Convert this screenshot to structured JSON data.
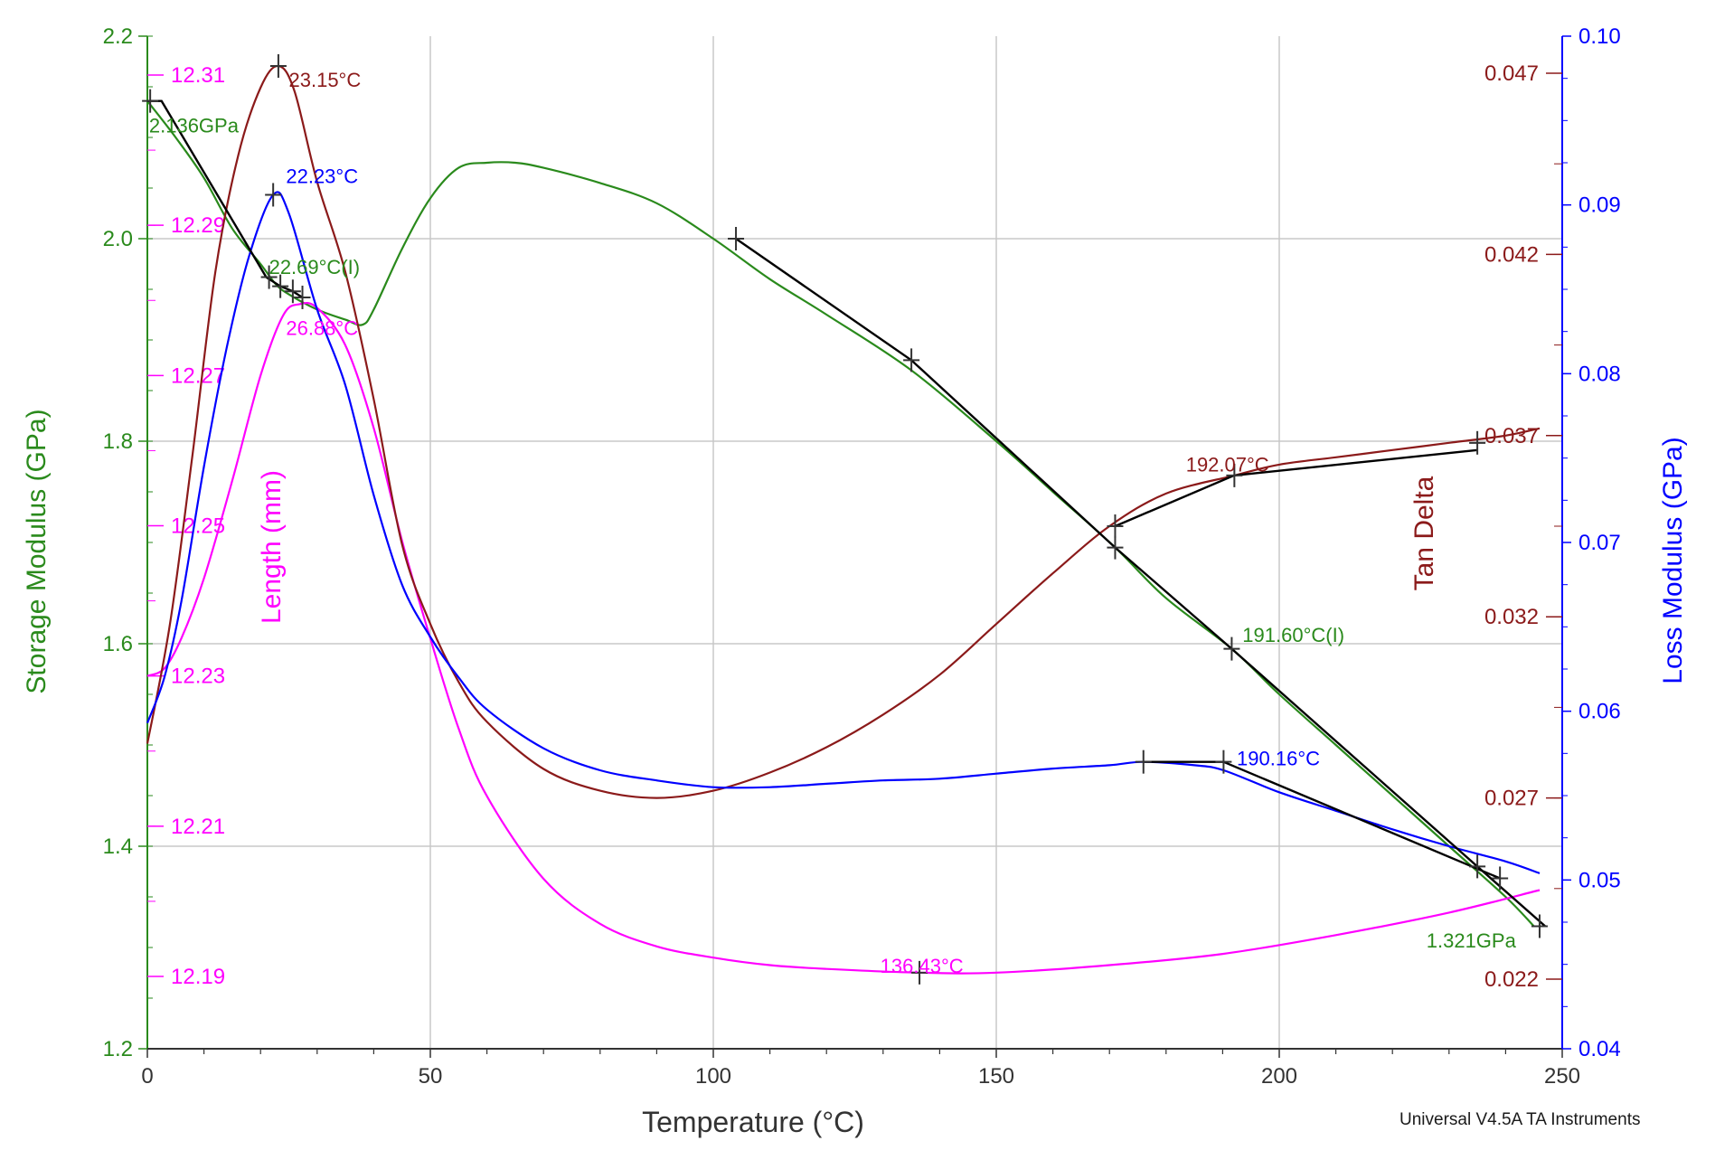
{
  "chart_data": {
    "type": "line",
    "xlabel": "Temperature (°C)",
    "xlim": [
      0,
      250
    ],
    "x_ticks": [
      0,
      50,
      100,
      150,
      200,
      250
    ],
    "footer": "Universal V4.5A TA Instruments",
    "axes": {
      "storage": {
        "label": "Storage Modulus (GPa)",
        "range": [
          1.2,
          2.2
        ],
        "ticks": [
          "1.2",
          "1.4",
          "1.6",
          "1.8",
          "2.0",
          "2.2"
        ],
        "color": "#2a8a1c"
      },
      "length": {
        "label": "Length (mm)",
        "ticks": [
          "12.19",
          "12.21",
          "12.23",
          "12.25",
          "12.27",
          "12.29",
          "12.31"
        ],
        "color": "#ff00ff"
      },
      "tan": {
        "label": "Tan Delta",
        "ticks": [
          "0.022",
          "0.027",
          "0.032",
          "0.037",
          "0.042",
          "0.047"
        ],
        "color": "#8b1a1a"
      },
      "loss": {
        "label": "Loss Modulus (GPa)",
        "range": [
          0.04,
          0.1
        ],
        "ticks": [
          "0.04",
          "0.05",
          "0.06",
          "0.07",
          "0.08",
          "0.09",
          "0.10"
        ],
        "color": "#0000ff"
      }
    },
    "series": [
      {
        "name": "Storage Modulus",
        "axis": "storage",
        "color": "#2a8a1c",
        "x": [
          0,
          5,
          10,
          15,
          20,
          22.7,
          25,
          30,
          35,
          38,
          40,
          45,
          50,
          55,
          60,
          65,
          70,
          80,
          90,
          100,
          110,
          120,
          135,
          150,
          160,
          171,
          180,
          191.6,
          200,
          210,
          220,
          230,
          240,
          245
        ],
        "y": [
          2.136,
          2.1,
          2.06,
          2.01,
          1.975,
          1.955,
          1.945,
          1.93,
          1.92,
          1.915,
          1.93,
          1.99,
          2.04,
          2.07,
          2.075,
          2.075,
          2.07,
          2.055,
          2.035,
          2.0,
          1.96,
          1.925,
          1.87,
          1.8,
          1.75,
          1.695,
          1.645,
          1.595,
          1.55,
          1.5,
          1.45,
          1.4,
          1.35,
          1.321
        ]
      },
      {
        "name": "Length",
        "axis": "length",
        "color": "#ff00ff",
        "x": [
          0,
          3,
          6,
          10,
          15,
          20,
          24,
          26.9,
          30,
          35,
          40,
          45,
          50,
          55,
          60,
          70,
          80,
          90,
          100,
          110,
          120,
          136.43,
          150,
          170,
          190,
          210,
          230,
          246
        ],
        "y": [
          12.23,
          12.231,
          12.235,
          12.243,
          12.256,
          12.27,
          12.278,
          12.2795,
          12.279,
          12.274,
          12.263,
          12.248,
          12.235,
          12.223,
          12.214,
          12.203,
          12.197,
          12.194,
          12.1925,
          12.1915,
          12.191,
          12.1905,
          12.1905,
          12.1915,
          12.193,
          12.1955,
          12.1985,
          12.2015
        ]
      },
      {
        "name": "Tan Delta",
        "axis": "tan",
        "color": "#8b1a1a",
        "x": [
          0,
          4,
          8,
          12,
          16,
          20,
          23.15,
          26,
          30,
          35,
          40,
          45,
          50,
          55,
          60,
          70,
          80,
          90,
          100,
          110,
          120,
          130,
          140,
          150,
          160,
          170,
          180,
          192.07,
          200,
          210,
          220,
          230,
          240,
          246
        ],
        "y": [
          0.0285,
          0.0318,
          0.0365,
          0.0415,
          0.0447,
          0.0466,
          0.0472,
          0.0465,
          0.044,
          0.0415,
          0.038,
          0.034,
          0.0318,
          0.0302,
          0.0291,
          0.0278,
          0.0272,
          0.027,
          0.0272,
          0.0277,
          0.0284,
          0.0293,
          0.0304,
          0.0318,
          0.0332,
          0.0345,
          0.0354,
          0.0359,
          0.0362,
          0.0364,
          0.0366,
          0.0368,
          0.037,
          0.0372
        ]
      },
      {
        "name": "Loss Modulus",
        "axis": "loss",
        "color": "#0000ff",
        "x": [
          0,
          3,
          6,
          10,
          14,
          18,
          22.23,
          25,
          30,
          35,
          40,
          45,
          50,
          55,
          60,
          70,
          80,
          90,
          100,
          110,
          120,
          130,
          140,
          150,
          160,
          170,
          176,
          185,
          190.16,
          200,
          210,
          220,
          230,
          240,
          246
        ],
        "y": [
          0.0593,
          0.062,
          0.0665,
          0.0745,
          0.0815,
          0.087,
          0.0906,
          0.0895,
          0.0838,
          0.0793,
          0.0728,
          0.0675,
          0.0644,
          0.062,
          0.0601,
          0.0578,
          0.0565,
          0.0559,
          0.0555,
          0.0555,
          0.0557,
          0.0559,
          0.056,
          0.0563,
          0.0566,
          0.0568,
          0.057,
          0.0568,
          0.0565,
          0.0552,
          0.0541,
          0.053,
          0.052,
          0.0511,
          0.0504
        ]
      },
      {
        "name": "Storage onset tangents",
        "axis": "storage",
        "color": "#000000",
        "x": [
          0,
          2.5,
          21,
          23.5,
          25.7,
          27.4,
          null,
          104,
          135,
          171,
          191.6,
          235,
          247
        ],
        "y": [
          2.136,
          2.136,
          1.962,
          1.953,
          1.948,
          1.942,
          null,
          2.0,
          1.88,
          1.695,
          1.595,
          1.38,
          1.321
        ]
      },
      {
        "name": "Tan Delta onset tangents",
        "axis": "tan",
        "color": "#000000",
        "x": [
          171,
          192,
          235
        ],
        "y": [
          0.0345,
          0.0359,
          0.0366
        ]
      },
      {
        "name": "Loss Modulus onset tangents",
        "axis": "loss",
        "color": "#000000",
        "x": [
          176,
          190.16,
          null,
          190.16,
          239
        ],
        "y": [
          0.057,
          0.057,
          null,
          0.057,
          0.0501
        ]
      }
    ],
    "markers": [
      {
        "series": "Storage Modulus",
        "x": 0.5,
        "y": 2.136
      },
      {
        "series": "Storage Modulus",
        "x": 104,
        "y": 2.0
      },
      {
        "series": "Storage Modulus",
        "x": 135,
        "y": 1.88
      },
      {
        "series": "Storage Modulus",
        "x": 171,
        "y": 1.695
      },
      {
        "series": "Storage Modulus",
        "x": 191.6,
        "y": 1.595
      },
      {
        "series": "Storage Modulus",
        "x": 235,
        "y": 1.38
      },
      {
        "series": "Storage Modulus",
        "x": 246,
        "y": 1.321
      },
      {
        "series": "Storage Modulus",
        "x": 21.5,
        "y": 1.962
      },
      {
        "series": "Storage Modulus",
        "x": 23.5,
        "y": 1.953
      },
      {
        "series": "Storage Modulus",
        "x": 25.7,
        "y": 1.948
      },
      {
        "series": "Storage Modulus",
        "x": 27.4,
        "y": 1.942
      },
      {
        "series": "Tan Delta",
        "x": 23.15,
        "y": 0.0472
      },
      {
        "series": "Tan Delta",
        "x": 171,
        "y": 0.0345
      },
      {
        "series": "Tan Delta",
        "x": 192.07,
        "y": 0.0359
      },
      {
        "series": "Tan Delta",
        "x": 235,
        "y": 0.0368
      },
      {
        "series": "Loss Modulus",
        "x": 22.23,
        "y": 0.0906
      },
      {
        "series": "Loss Modulus",
        "x": 176,
        "y": 0.057
      },
      {
        "series": "Loss Modulus",
        "x": 190.16,
        "y": 0.057
      },
      {
        "series": "Loss Modulus",
        "x": 239,
        "y": 0.0501
      },
      {
        "series": "Length",
        "x": 136.43,
        "y": 12.1905
      }
    ],
    "annotations": [
      {
        "text": "23.15°C",
        "x": 25,
        "y": 2.15,
        "color": "#8b1a1a"
      },
      {
        "text": "2.136GPa",
        "x": 0.3,
        "y": 2.105,
        "color": "#2a8a1c"
      },
      {
        "text": "22.23°C",
        "x": 24.5,
        "y": 2.055,
        "color": "#0000ff"
      },
      {
        "text": "22.69°C(I)",
        "x": 21.5,
        "y": 1.965,
        "color": "#2a8a1c"
      },
      {
        "text": "26.88°C",
        "x": 24.5,
        "y": 1.905,
        "color": "#ff00ff"
      },
      {
        "text": "192.07°C",
        "x": 183.5,
        "y": 1.77,
        "color": "#8b1a1a"
      },
      {
        "text": "191.60°C(I)",
        "x": 193.5,
        "y": 1.602,
        "color": "#2a8a1c"
      },
      {
        "text": "190.16°C",
        "x": 192.5,
        "y": 1.48,
        "color": "#0000ff"
      },
      {
        "text": "1.321GPa",
        "x": 226,
        "y": 1.3,
        "color": "#2a8a1c"
      },
      {
        "text": "136.43°C",
        "x": 129.5,
        "y": 1.275,
        "color": "#ff00ff"
      }
    ]
  }
}
